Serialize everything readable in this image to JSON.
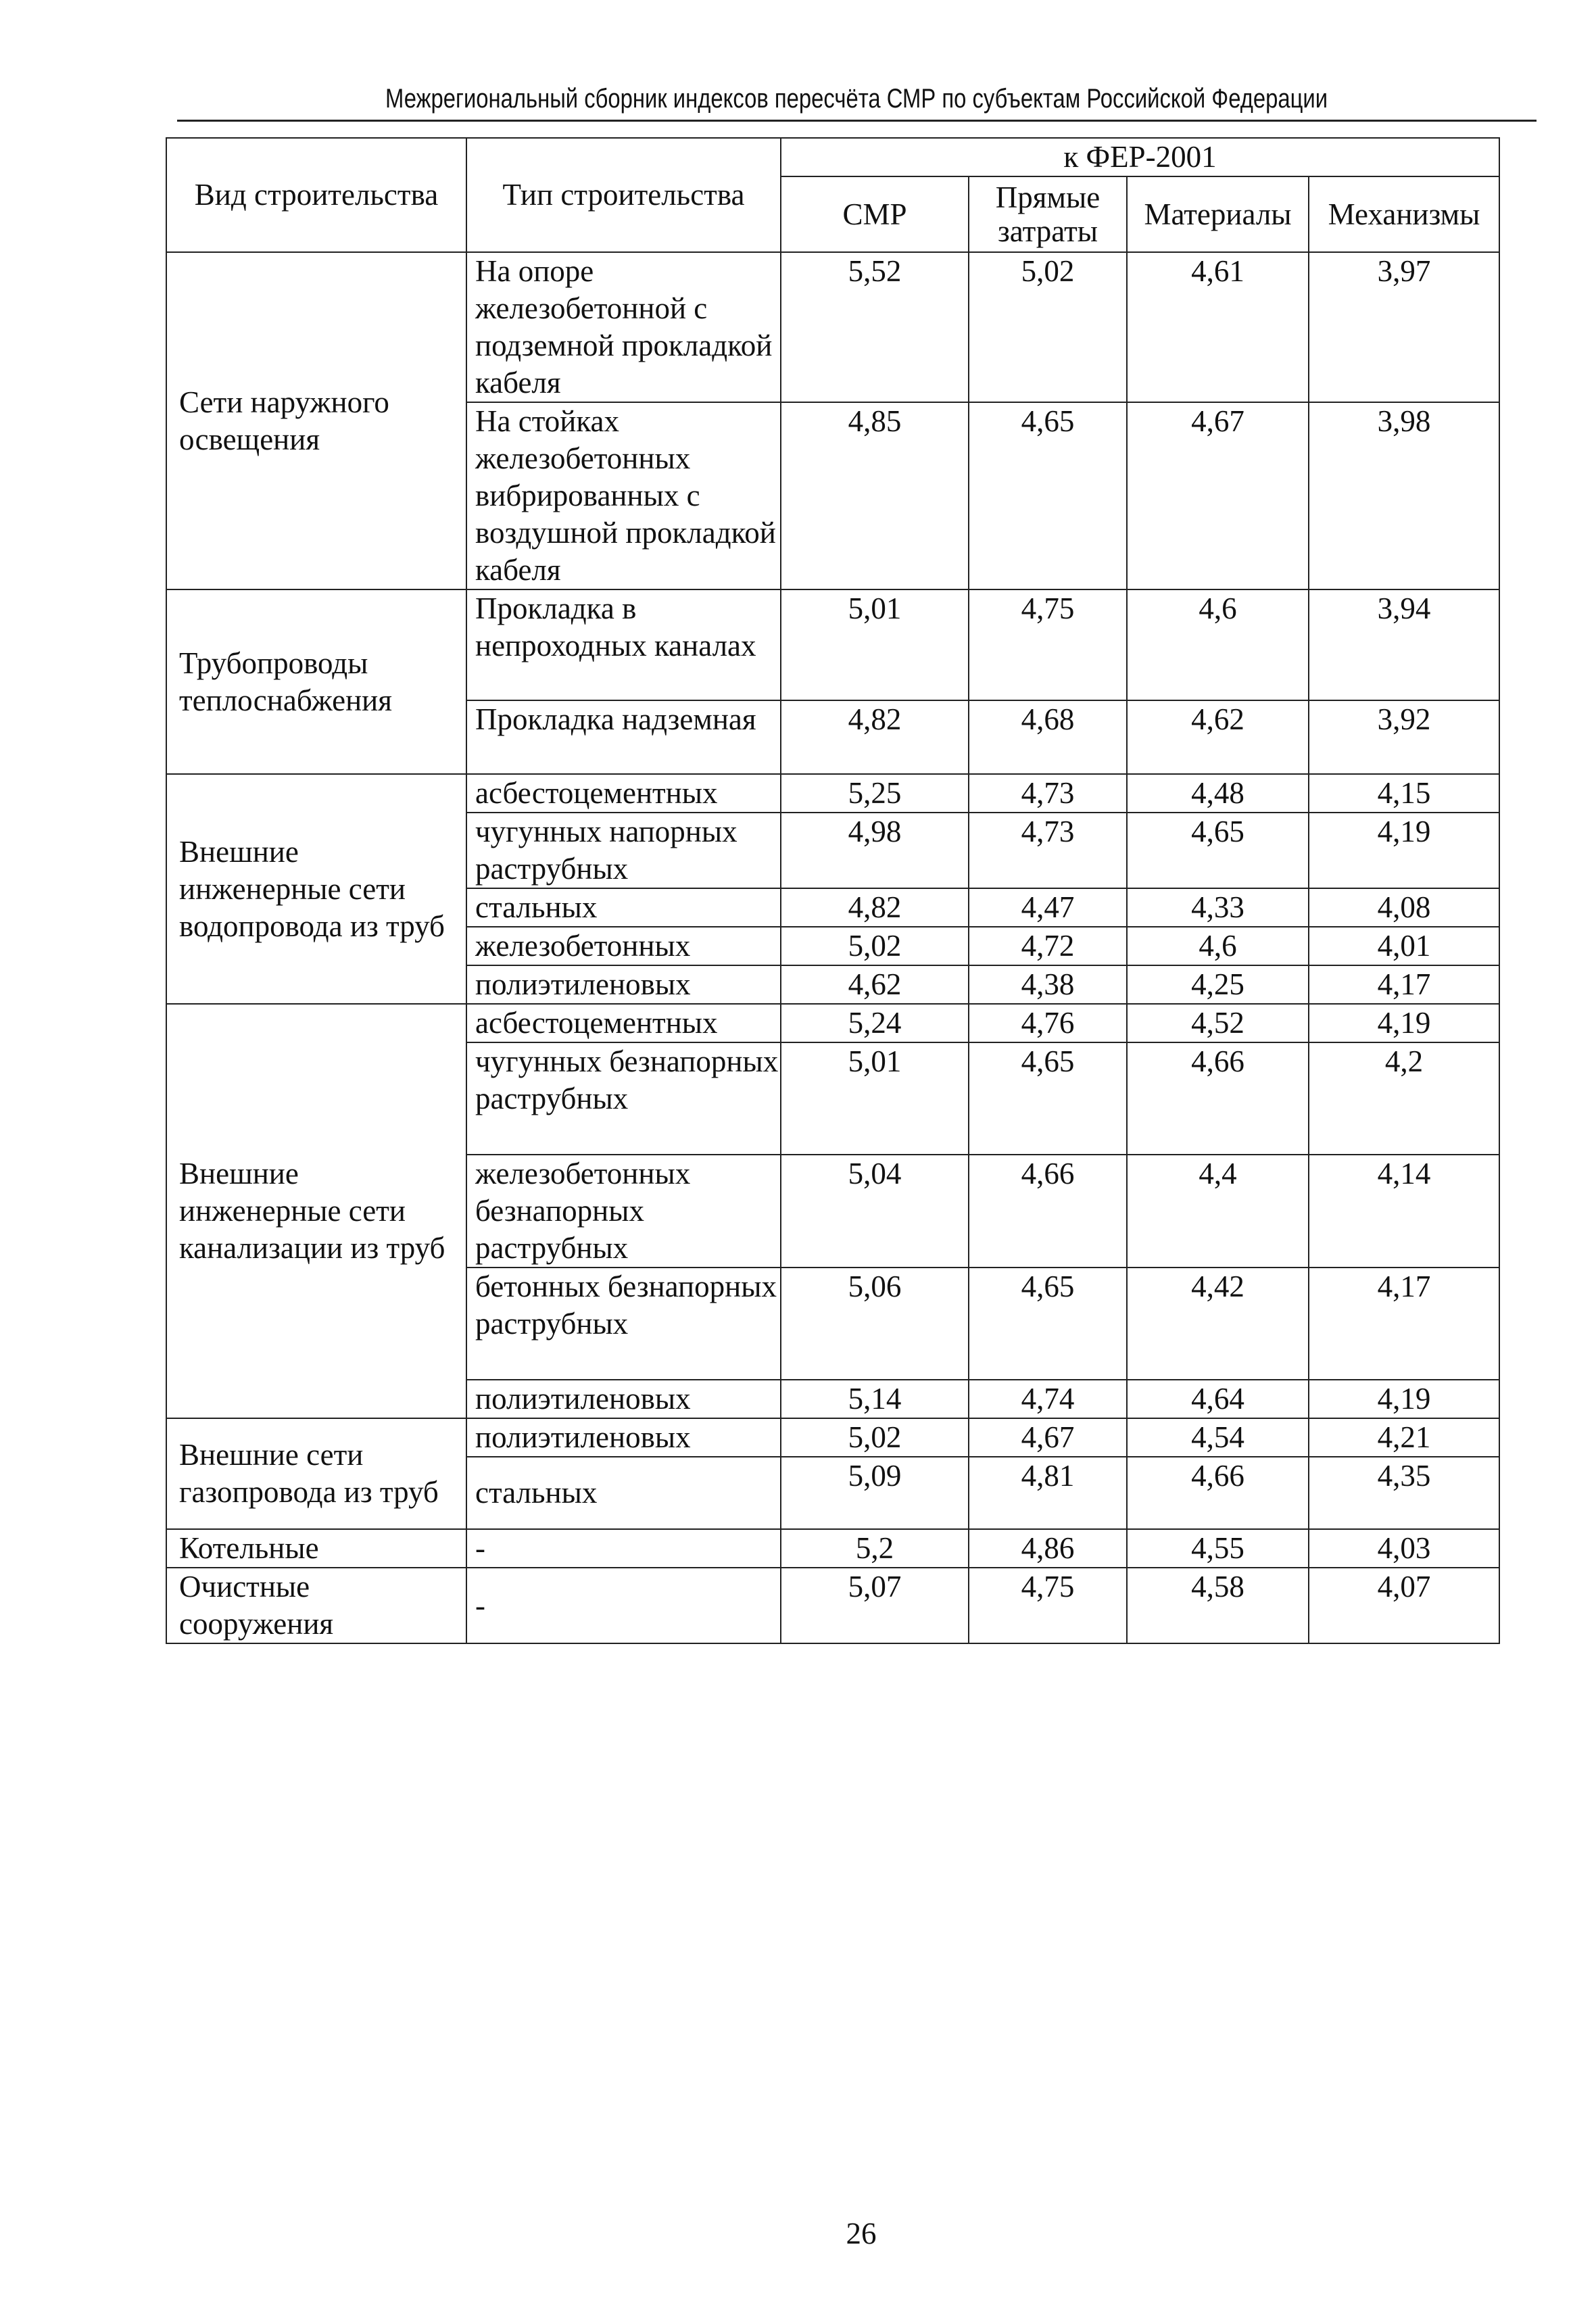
{
  "header": {
    "title": "Межрегиональный сборник индексов пересчёта СМР  по субъектам Российской Федерации"
  },
  "table": {
    "col_type_group": "Вид строительства",
    "col_type": "Тип строительства",
    "col_super": "к ФЕР-2001",
    "cols": [
      "СМР",
      "Прямые затраты",
      "Материалы",
      "Механизмы"
    ],
    "groups": [
      {
        "name": "Сети наружного освещения",
        "rows": [
          {
            "type": "На опоре железобетонной с подземной прокладкой кабеля",
            "values": [
              "5,52",
              "5,02",
              "4,61",
              "3,97"
            ]
          },
          {
            "type": "На стойках железобетонных вибрированных с воздушной прокладкой кабеля",
            "values": [
              "4,85",
              "4,65",
              "4,67",
              "3,98"
            ]
          }
        ]
      },
      {
        "name": "Трубопроводы теплоснабжения",
        "rows": [
          {
            "type": "Прокладка в непроходных каналах",
            "values": [
              "5,01",
              "4,75",
              "4,6",
              "3,94"
            ]
          },
          {
            "type": "Прокладка надземная",
            "values": [
              "4,82",
              "4,68",
              "4,62",
              "3,92"
            ]
          }
        ]
      },
      {
        "name": "Внешние инженерные сети водопровода из труб",
        "rows": [
          {
            "type": "асбестоцементных",
            "values": [
              "5,25",
              "4,73",
              "4,48",
              "4,15"
            ]
          },
          {
            "type": "чугунных напорных раструбных",
            "values": [
              "4,98",
              "4,73",
              "4,65",
              "4,19"
            ]
          },
          {
            "type": "стальных",
            "values": [
              "4,82",
              "4,47",
              "4,33",
              "4,08"
            ]
          },
          {
            "type": "железобетонных",
            "values": [
              "5,02",
              "4,72",
              "4,6",
              "4,01"
            ]
          },
          {
            "type": "полиэтиленовых",
            "values": [
              "4,62",
              "4,38",
              "4,25",
              "4,17"
            ]
          }
        ]
      },
      {
        "name": "Внешние инженерные сети канализации из труб",
        "rows": [
          {
            "type": "асбестоцементных",
            "values": [
              "5,24",
              "4,76",
              "4,52",
              "4,19"
            ]
          },
          {
            "type": "чугунных безнапорных раструбных",
            "values": [
              "5,01",
              "4,65",
              "4,66",
              "4,2"
            ]
          },
          {
            "type": "железобетонных безнапорных раструбных",
            "values": [
              "5,04",
              "4,66",
              "4,4",
              "4,14"
            ]
          },
          {
            "type": "бетонных безнапорных раструбных",
            "values": [
              "5,06",
              "4,65",
              "4,42",
              "4,17"
            ]
          },
          {
            "type": "полиэтиленовых",
            "values": [
              "5,14",
              "4,74",
              "4,64",
              "4,19"
            ]
          }
        ]
      },
      {
        "name": "Внешние сети газопровода из труб",
        "rows": [
          {
            "type": "полиэтиленовых",
            "values": [
              "5,02",
              "4,67",
              "4,54",
              "4,21"
            ]
          },
          {
            "type": "стальных",
            "values": [
              "5,09",
              "4,81",
              "4,66",
              "4,35"
            ]
          }
        ]
      },
      {
        "name": "Котельные",
        "rows": [
          {
            "type": "-",
            "values": [
              "5,2",
              "4,86",
              "4,55",
              "4,03"
            ]
          }
        ]
      },
      {
        "name": "Очистные сооружения",
        "rows": [
          {
            "type": "-",
            "values": [
              "5,07",
              "4,75",
              "4,58",
              "4,07"
            ]
          }
        ]
      }
    ]
  },
  "footer": {
    "page_number": "26"
  }
}
